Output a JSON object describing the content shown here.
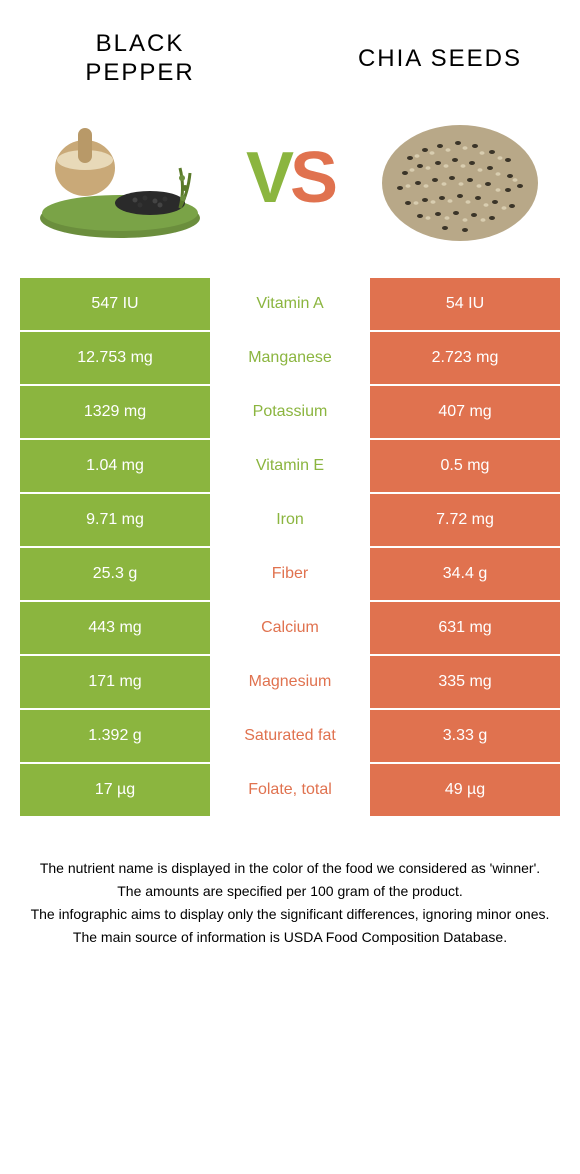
{
  "colors": {
    "green": "#8bb53f",
    "orange": "#e0724f",
    "white": "#ffffff",
    "black": "#000000"
  },
  "left_title": "BLACK PEPPER",
  "right_title": "CHIA SEEDS",
  "vs_v": "V",
  "vs_s": "S",
  "rows": [
    {
      "left": "547 IU",
      "mid": "Vitamin A",
      "right": "54 IU",
      "winner": "left"
    },
    {
      "left": "12.753 mg",
      "mid": "Manganese",
      "right": "2.723 mg",
      "winner": "left"
    },
    {
      "left": "1329 mg",
      "mid": "Potassium",
      "right": "407 mg",
      "winner": "left"
    },
    {
      "left": "1.04 mg",
      "mid": "Vitamin E",
      "right": "0.5 mg",
      "winner": "left"
    },
    {
      "left": "9.71 mg",
      "mid": "Iron",
      "right": "7.72 mg",
      "winner": "left"
    },
    {
      "left": "25.3 g",
      "mid": "Fiber",
      "right": "34.4 g",
      "winner": "right"
    },
    {
      "left": "443 mg",
      "mid": "Calcium",
      "right": "631 mg",
      "winner": "right"
    },
    {
      "left": "171 mg",
      "mid": "Magnesium",
      "right": "335 mg",
      "winner": "right"
    },
    {
      "left": "1.392 g",
      "mid": "Saturated fat",
      "right": "3.33 g",
      "winner": "right"
    },
    {
      "left": "17 µg",
      "mid": "Folate, total",
      "right": "49 µg",
      "winner": "right"
    }
  ],
  "footer": [
    "The nutrient name is displayed in the color of the food we considered as 'winner'.",
    "The amounts are specified per 100 gram of the product.",
    "The infographic aims to display only the significant differences, ignoring minor ones.",
    "The main source of information is USDA Food Composition Database."
  ]
}
